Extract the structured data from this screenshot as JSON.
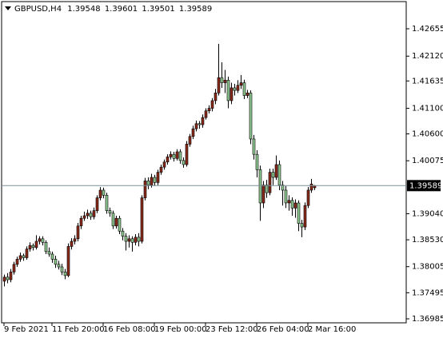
{
  "chart_data": {
    "type": "candlestick",
    "symbol": "GBPUSD,H4",
    "up_color": "#8b2a1a",
    "down_color": "#8fc98f",
    "wick_color": "#000000",
    "price_line_color": "#7a8f9a",
    "xlim": [
      -0.75,
      125.75
    ],
    "ylim": [
      1.36907,
      1.43186
    ],
    "xticks": [
      {
        "value": 0,
        "label": "9 Feb 2021"
      },
      {
        "value": 15,
        "label": "11 Feb 20:00"
      },
      {
        "value": 31,
        "label": "16 Feb 08:00"
      },
      {
        "value": 47,
        "label": "19 Feb 00:00"
      },
      {
        "value": 63,
        "label": "23 Feb 12:00"
      },
      {
        "value": 79,
        "label": "26 Feb 04:00"
      },
      {
        "value": 95,
        "label": "2 Mar 16:00"
      }
    ],
    "yticks": [
      1.42655,
      {
        "value": 1.4212,
        "label": "1.42120"
      },
      1.41635,
      {
        "value": 1.411,
        "label": "1.41100"
      },
      {
        "value": 1.406,
        "label": "1.40600"
      },
      1.40075,
      {
        "value": 1.3904,
        "label": "1.39040"
      },
      {
        "value": 1.3853,
        "label": "1.38530"
      },
      1.38005,
      1.37495,
      1.36985
    ],
    "candles": [
      [
        1.3772,
        1.3785,
        1.3762,
        1.378
      ],
      [
        1.378,
        1.3788,
        1.3768,
        1.3775
      ],
      [
        1.3775,
        1.3796,
        1.377,
        1.379
      ],
      [
        1.379,
        1.381,
        1.3785,
        1.3805
      ],
      [
        1.3805,
        1.382,
        1.38,
        1.3815
      ],
      [
        1.3815,
        1.3828,
        1.381,
        1.3822
      ],
      [
        1.3822,
        1.3826,
        1.3812,
        1.3818
      ],
      [
        1.3818,
        1.384,
        1.3814,
        1.3835
      ],
      [
        1.3835,
        1.3848,
        1.383,
        1.3842
      ],
      [
        1.3842,
        1.3846,
        1.3832,
        1.3838
      ],
      [
        1.3838,
        1.3862,
        1.3834,
        1.385
      ],
      [
        1.385,
        1.386,
        1.3844,
        1.3855
      ],
      [
        1.3855,
        1.386,
        1.3842,
        1.3848
      ],
      [
        1.3848,
        1.3852,
        1.3825,
        1.383
      ],
      [
        1.383,
        1.3838,
        1.382,
        1.3825
      ],
      [
        1.3825,
        1.383,
        1.3808,
        1.3815
      ],
      [
        1.3815,
        1.3822,
        1.3798,
        1.3805
      ],
      [
        1.3805,
        1.3812,
        1.3795,
        1.38
      ],
      [
        1.38,
        1.3806,
        1.3784,
        1.379
      ],
      [
        1.379,
        1.3796,
        1.3776,
        1.3783
      ],
      [
        1.3783,
        1.3846,
        1.378,
        1.384
      ],
      [
        1.384,
        1.3856,
        1.3834,
        1.385
      ],
      [
        1.385,
        1.3862,
        1.3844,
        1.3855
      ],
      [
        1.3855,
        1.3886,
        1.385,
        1.388
      ],
      [
        1.388,
        1.39,
        1.3874,
        1.3895
      ],
      [
        1.3895,
        1.3908,
        1.389,
        1.39
      ],
      [
        1.39,
        1.3912,
        1.3894,
        1.3905
      ],
      [
        1.3905,
        1.391,
        1.3892,
        1.3898
      ],
      [
        1.3898,
        1.3916,
        1.3893,
        1.391
      ],
      [
        1.391,
        1.394,
        1.3905,
        1.3935
      ],
      [
        1.3935,
        1.3956,
        1.393,
        1.395
      ],
      [
        1.395,
        1.3955,
        1.3934,
        1.394
      ],
      [
        1.394,
        1.3945,
        1.3904,
        1.391
      ],
      [
        1.391,
        1.3916,
        1.3898,
        1.3905
      ],
      [
        1.3905,
        1.391,
        1.3874,
        1.388
      ],
      [
        1.388,
        1.39,
        1.3875,
        1.3895
      ],
      [
        1.3895,
        1.39,
        1.3864,
        1.387
      ],
      [
        1.387,
        1.3876,
        1.3852,
        1.386
      ],
      [
        1.386,
        1.3866,
        1.3832,
        1.385
      ],
      [
        1.385,
        1.3862,
        1.3838,
        1.3855
      ],
      [
        1.3855,
        1.386,
        1.383,
        1.3848
      ],
      [
        1.3848,
        1.3864,
        1.3842,
        1.3858
      ],
      [
        1.3858,
        1.3866,
        1.384,
        1.385
      ],
      [
        1.385,
        1.394,
        1.3846,
        1.3935
      ],
      [
        1.3935,
        1.3974,
        1.393,
        1.3968
      ],
      [
        1.3968,
        1.3975,
        1.3952,
        1.396
      ],
      [
        1.396,
        1.3982,
        1.3955,
        1.3975
      ],
      [
        1.3975,
        1.398,
        1.3958,
        1.3965
      ],
      [
        1.3965,
        1.399,
        1.396,
        1.3985
      ],
      [
        1.3985,
        1.4,
        1.398,
        1.3995
      ],
      [
        1.3995,
        1.401,
        1.399,
        1.4005
      ],
      [
        1.4005,
        1.402,
        1.4,
        1.4015
      ],
      [
        1.4015,
        1.4026,
        1.401,
        1.402
      ],
      [
        1.402,
        1.4025,
        1.4006,
        1.4012
      ],
      [
        1.4012,
        1.403,
        1.4008,
        1.4025
      ],
      [
        1.4025,
        1.403,
        1.4002,
        1.4008
      ],
      [
        1.4008,
        1.4014,
        1.3994,
        1.4
      ],
      [
        1.4,
        1.4046,
        1.3996,
        1.404
      ],
      [
        1.404,
        1.406,
        1.4035,
        1.4055
      ],
      [
        1.4055,
        1.4076,
        1.405,
        1.407
      ],
      [
        1.407,
        1.4086,
        1.4065,
        1.408
      ],
      [
        1.408,
        1.4085,
        1.407,
        1.4078
      ],
      [
        1.4078,
        1.4098,
        1.4072,
        1.4092
      ],
      [
        1.4092,
        1.411,
        1.4088,
        1.4105
      ],
      [
        1.4105,
        1.4116,
        1.41,
        1.411
      ],
      [
        1.411,
        1.413,
        1.4104,
        1.4125
      ],
      [
        1.4125,
        1.4148,
        1.4118,
        1.414
      ],
      [
        1.414,
        1.4236,
        1.4135,
        1.417
      ],
      [
        1.417,
        1.42,
        1.415,
        1.416
      ],
      [
        1.416,
        1.4185,
        1.414,
        1.4165
      ],
      [
        1.4165,
        1.4172,
        1.411,
        1.4125
      ],
      [
        1.4125,
        1.416,
        1.4118,
        1.415
      ],
      [
        1.415,
        1.4158,
        1.4135,
        1.4145
      ],
      [
        1.4145,
        1.4165,
        1.414,
        1.4155
      ],
      [
        1.4155,
        1.4175,
        1.4148,
        1.416
      ],
      [
        1.416,
        1.4166,
        1.4128,
        1.4135
      ],
      [
        1.4135,
        1.4146,
        1.413,
        1.414
      ],
      [
        1.414,
        1.4145,
        1.404,
        1.405
      ],
      [
        1.405,
        1.4058,
        1.401,
        1.402
      ],
      [
        1.402,
        1.4028,
        1.3975,
        1.399
      ],
      [
        1.399,
        1.3998,
        1.389,
        1.3925
      ],
      [
        1.3925,
        1.3968,
        1.3915,
        1.396
      ],
      [
        1.396,
        1.397,
        1.3935,
        1.3945
      ],
      [
        1.3945,
        1.3992,
        1.394,
        1.3985
      ],
      [
        1.3985,
        1.3992,
        1.396,
        1.3975
      ],
      [
        1.3975,
        1.4018,
        1.397,
        1.4
      ],
      [
        1.4,
        1.4008,
        1.395,
        1.396
      ],
      [
        1.396,
        1.3968,
        1.392,
        1.395
      ],
      [
        1.395,
        1.3958,
        1.3915,
        1.3925
      ],
      [
        1.3925,
        1.394,
        1.391,
        1.393
      ],
      [
        1.393,
        1.3936,
        1.39,
        1.3915
      ],
      [
        1.3915,
        1.3932,
        1.3896,
        1.3925
      ],
      [
        1.3925,
        1.393,
        1.387,
        1.3885
      ],
      [
        1.3885,
        1.3892,
        1.3858,
        1.3878
      ],
      [
        1.3878,
        1.3926,
        1.3872,
        1.392
      ],
      [
        1.392,
        1.3956,
        1.3915,
        1.395
      ],
      [
        1.395,
        1.3972,
        1.3945,
        1.3962
      ],
      [
        1.39548,
        1.39601,
        1.39501,
        1.39589
      ]
    ]
  }
}
